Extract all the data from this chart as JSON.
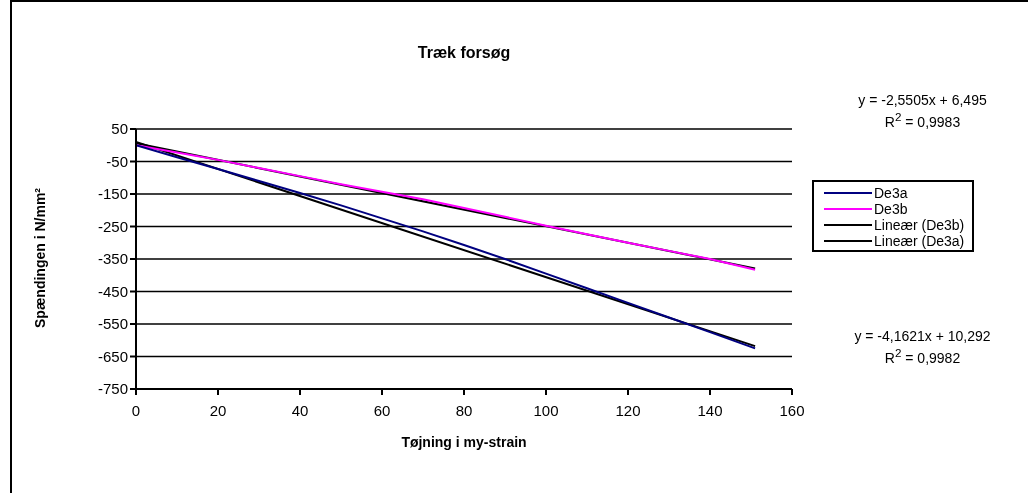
{
  "chart_data": {
    "type": "line",
    "title": "Træk forsøg",
    "xlabel": "Tøjning i my-strain",
    "ylabel": "Spændingen i N/mm²",
    "xlim": [
      0,
      160
    ],
    "xticks": [
      0,
      20,
      40,
      60,
      80,
      100,
      120,
      140,
      160
    ],
    "ylim": [
      -750,
      50
    ],
    "yticks": [
      -750,
      -650,
      -550,
      -450,
      -350,
      -250,
      -150,
      -50,
      50
    ],
    "grid": "y",
    "legend": "right",
    "marker": "none",
    "line_style": "solid",
    "annotations": [
      "y = -2,5505x + 6,495",
      "R$^{2}$ = 0,9983",
      "y = -4,1621x + 10,292",
      "R$^{2}$ = 0,9982"
    ],
    "series": [
      {
        "name": "De3a",
        "color": "#000080",
        "x": [
          0,
          10,
          20,
          30,
          40,
          50,
          60,
          70,
          80,
          90,
          100,
          110,
          120,
          130,
          140,
          151
        ],
        "values": [
          0,
          -37,
          -73,
          -110,
          -147,
          -185,
          -225,
          -265,
          -307,
          -350,
          -395,
          -440,
          -485,
          -530,
          -575,
          -625
        ]
      },
      {
        "name": "De3b",
        "color": "#ff00ff",
        "x": [
          0,
          10,
          20,
          30,
          40,
          50,
          60,
          70,
          80,
          90,
          100,
          110,
          120,
          130,
          140,
          151
        ],
        "values": [
          0,
          -22,
          -45,
          -70,
          -95,
          -120,
          -143,
          -166,
          -193,
          -220,
          -248,
          -274,
          -300,
          -325,
          -350,
          -383
        ]
      },
      {
        "name": "Lineær (De3b)",
        "color": "#000000",
        "x": [
          0,
          151
        ],
        "values": [
          6,
          -379
        ]
      },
      {
        "name": "Lineær (De3a)",
        "color": "#000000",
        "x": [
          0,
          151
        ],
        "values": [
          10,
          -618
        ]
      }
    ]
  }
}
